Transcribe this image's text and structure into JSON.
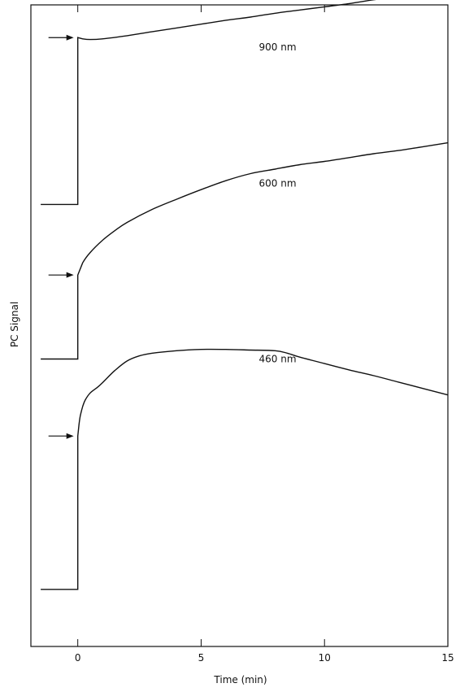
{
  "chart_data": {
    "type": "line",
    "title": "",
    "xlabel": "Time (min)",
    "ylabel": "PC Signal",
    "xlim": [
      -1.9,
      15
    ],
    "ylim": [
      0,
      100
    ],
    "x_ticks": [
      0,
      5,
      10,
      15
    ],
    "x_tick_labels": [
      "0",
      "5",
      "10",
      "15"
    ],
    "y_ticks_labeled": false,
    "grid": false,
    "series": [
      {
        "name": "900 nm",
        "label_at": [
          8.1,
          92.9
        ],
        "arrow_at": [
          0,
          94.9
        ],
        "x": [
          -1.5,
          0,
          0,
          0.2,
          0.5,
          1,
          2,
          3,
          4,
          5,
          6,
          7,
          8,
          9,
          10,
          11,
          12,
          13,
          14,
          15
        ],
        "y": [
          68.9,
          68.9,
          94.9,
          94.7,
          94.6,
          94.7,
          95.2,
          95.8,
          96.4,
          97.0,
          97.6,
          98.1,
          98.7,
          99.2,
          99.7,
          100.2,
          100.8,
          101.3,
          101.8,
          102.4
        ]
      },
      {
        "name": "600 nm",
        "label_at": [
          8.1,
          71.7
        ],
        "arrow_at": [
          0,
          57.9
        ],
        "x": [
          -1.5,
          0,
          0,
          0.2,
          0.5,
          1,
          1.5,
          2,
          3,
          4,
          5,
          6,
          7,
          8,
          9,
          10,
          11,
          12,
          13,
          14,
          15
        ],
        "y": [
          44.8,
          44.8,
          57.9,
          59.8,
          61.4,
          63.3,
          64.8,
          66.1,
          68.1,
          69.7,
          71.2,
          72.6,
          73.7,
          74.4,
          75.1,
          75.6,
          76.2,
          76.8,
          77.3,
          77.9,
          78.5
        ]
      },
      {
        "name": "460 nm",
        "label_at": [
          8.1,
          44.3
        ],
        "arrow_at": [
          0,
          32.8
        ],
        "x": [
          -1.5,
          0,
          0,
          0.05,
          0.1,
          0.2,
          0.3,
          0.5,
          0.8,
          1,
          1.5,
          2,
          2.5,
          3,
          4,
          5,
          6,
          7,
          8,
          8.5,
          9,
          10,
          11,
          12,
          13,
          14,
          15
        ],
        "y": [
          8.9,
          8.9,
          32.8,
          34.6,
          35.9,
          37.4,
          38.4,
          39.5,
          40.4,
          41.1,
          43.0,
          44.5,
          45.3,
          45.7,
          46.1,
          46.3,
          46.3,
          46.2,
          46.1,
          45.7,
          45.1,
          44.1,
          43.1,
          42.2,
          41.2,
          40.2,
          39.2
        ]
      }
    ]
  }
}
